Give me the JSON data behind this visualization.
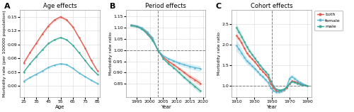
{
  "colors": {
    "both": "#E05A4E",
    "female": "#5BB8D4",
    "male": "#3AA898"
  },
  "panel_A": {
    "title": "Age effects",
    "xlabel": "Age",
    "ylabel": "Morbidity rate (per 100000 population)",
    "xlim": [
      22,
      87
    ],
    "ylim": [
      -0.025,
      0.165
    ],
    "yticks": [
      0.0,
      0.03,
      0.06,
      0.09,
      0.12,
      0.15
    ],
    "xticks": [
      25,
      35,
      45,
      55,
      65,
      75,
      85
    ],
    "age_x": [
      25,
      30,
      35,
      40,
      45,
      50,
      55,
      60,
      65,
      70,
      75,
      80,
      85
    ],
    "both_y": [
      0.05,
      0.072,
      0.092,
      0.112,
      0.13,
      0.143,
      0.15,
      0.143,
      0.128,
      0.105,
      0.082,
      0.055,
      0.033
    ],
    "male_y": [
      0.03,
      0.048,
      0.063,
      0.078,
      0.092,
      0.1,
      0.105,
      0.1,
      0.088,
      0.072,
      0.055,
      0.038,
      0.025
    ],
    "female_y": [
      0.01,
      0.018,
      0.025,
      0.032,
      0.04,
      0.045,
      0.048,
      0.046,
      0.038,
      0.028,
      0.02,
      0.012,
      0.005
    ],
    "both_err": [
      0.003,
      0.003,
      0.003,
      0.003,
      0.003,
      0.003,
      0.003,
      0.003,
      0.003,
      0.003,
      0.003,
      0.003,
      0.003
    ],
    "male_err": [
      0.002,
      0.002,
      0.002,
      0.002,
      0.002,
      0.002,
      0.002,
      0.002,
      0.002,
      0.002,
      0.002,
      0.002,
      0.002
    ],
    "female_err": [
      0.002,
      0.002,
      0.002,
      0.002,
      0.002,
      0.002,
      0.002,
      0.002,
      0.002,
      0.002,
      0.002,
      0.002,
      0.002
    ]
  },
  "panel_B": {
    "title": "Period effects",
    "xlabel": "Year",
    "ylabel": "Morbidity rate ratio",
    "xlim": [
      1991,
      2021
    ],
    "ylim": [
      0.79,
      1.18
    ],
    "yticks": [
      0.85,
      0.9,
      0.95,
      1.0,
      1.05,
      1.1,
      1.15
    ],
    "xticks": [
      1995,
      2000,
      2005,
      2010,
      2015,
      2020
    ],
    "vline": 2003,
    "hline": 1.0,
    "period_x": [
      1993,
      1995,
      1997,
      1999,
      2001,
      2003,
      2005,
      2007,
      2009,
      2011,
      2013,
      2015,
      2017,
      2019
    ],
    "both_y": [
      1.112,
      1.108,
      1.098,
      1.078,
      1.05,
      1.0,
      0.97,
      0.95,
      0.935,
      0.918,
      0.9,
      0.882,
      0.868,
      0.852
    ],
    "female_y": [
      1.112,
      1.108,
      1.1,
      1.082,
      1.055,
      1.0,
      0.975,
      0.962,
      0.952,
      0.942,
      0.935,
      0.928,
      0.922,
      0.918
    ],
    "male_y": [
      1.11,
      1.106,
      1.095,
      1.072,
      1.044,
      1.0,
      0.963,
      0.94,
      0.922,
      0.9,
      0.878,
      0.858,
      0.838,
      0.818
    ],
    "both_err": [
      0.005,
      0.005,
      0.005,
      0.005,
      0.005,
      0.004,
      0.005,
      0.006,
      0.007,
      0.008,
      0.009,
      0.01,
      0.011,
      0.012
    ],
    "female_err": [
      0.006,
      0.006,
      0.006,
      0.006,
      0.006,
      0.005,
      0.006,
      0.007,
      0.008,
      0.009,
      0.01,
      0.011,
      0.012,
      0.013
    ],
    "male_err": [
      0.005,
      0.005,
      0.005,
      0.005,
      0.005,
      0.004,
      0.005,
      0.006,
      0.007,
      0.008,
      0.009,
      0.01,
      0.011,
      0.012
    ]
  },
  "panel_C": {
    "title": "Cohort effects",
    "xlabel": "Year",
    "ylabel": "Morbidity rate ratio",
    "xlim": [
      1905,
      1995
    ],
    "ylim": [
      0.72,
      2.85
    ],
    "yticks": [
      1.0,
      1.5,
      2.0,
      2.5
    ],
    "xticks": [
      1910,
      1930,
      1950,
      1970,
      1990
    ],
    "vline": 1950,
    "hline": 1.0,
    "cohort_x": [
      1910,
      1913,
      1916,
      1919,
      1922,
      1925,
      1928,
      1931,
      1934,
      1937,
      1940,
      1943,
      1946,
      1949,
      1952,
      1955,
      1958,
      1961,
      1964,
      1967,
      1970,
      1973,
      1976,
      1979,
      1982,
      1985,
      1988,
      1990
    ],
    "both_y": [
      2.22,
      2.15,
      2.05,
      1.92,
      1.8,
      1.72,
      1.65,
      1.58,
      1.5,
      1.42,
      1.35,
      1.28,
      1.2,
      1.05,
      0.95,
      0.88,
      0.87,
      0.88,
      0.9,
      0.95,
      1.05,
      1.12,
      1.1,
      1.08,
      1.05,
      1.03,
      1.01,
      1.0
    ],
    "female_y": [
      1.98,
      1.9,
      1.8,
      1.7,
      1.6,
      1.55,
      1.48,
      1.42,
      1.35,
      1.28,
      1.22,
      1.15,
      1.08,
      0.95,
      0.88,
      0.85,
      0.85,
      0.87,
      0.9,
      0.98,
      1.18,
      1.22,
      1.18,
      1.12,
      1.08,
      1.05,
      1.02,
      1.0
    ],
    "male_y": [
      2.42,
      2.32,
      2.2,
      2.08,
      1.95,
      1.85,
      1.76,
      1.67,
      1.58,
      1.5,
      1.42,
      1.35,
      1.27,
      1.12,
      1.0,
      0.92,
      0.9,
      0.9,
      0.92,
      0.97,
      1.05,
      1.1,
      1.08,
      1.06,
      1.04,
      1.02,
      1.01,
      1.0
    ],
    "both_err": [
      0.07,
      0.06,
      0.06,
      0.05,
      0.05,
      0.05,
      0.04,
      0.04,
      0.04,
      0.04,
      0.04,
      0.04,
      0.04,
      0.04,
      0.03,
      0.03,
      0.03,
      0.03,
      0.03,
      0.03,
      0.03,
      0.03,
      0.03,
      0.03,
      0.03,
      0.03,
      0.02,
      0.02
    ],
    "female_err": [
      0.14,
      0.12,
      0.1,
      0.09,
      0.08,
      0.07,
      0.06,
      0.06,
      0.05,
      0.05,
      0.05,
      0.05,
      0.05,
      0.05,
      0.04,
      0.04,
      0.04,
      0.04,
      0.04,
      0.05,
      0.06,
      0.06,
      0.05,
      0.05,
      0.04,
      0.04,
      0.03,
      0.03
    ],
    "male_err": [
      0.09,
      0.08,
      0.07,
      0.06,
      0.06,
      0.05,
      0.05,
      0.05,
      0.04,
      0.04,
      0.04,
      0.04,
      0.04,
      0.04,
      0.03,
      0.03,
      0.03,
      0.03,
      0.03,
      0.03,
      0.03,
      0.03,
      0.03,
      0.03,
      0.03,
      0.02,
      0.02,
      0.02
    ]
  },
  "legend": {
    "both": "both",
    "female": "female",
    "male": "male"
  }
}
